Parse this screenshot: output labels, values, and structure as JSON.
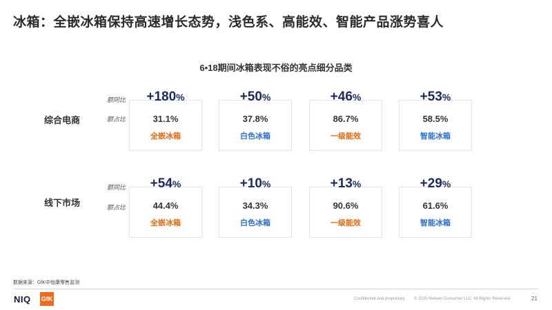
{
  "title": "冰箱：全嵌冰箱保持高速增长态势，浅色系、高能效、智能产品涨势喜人",
  "subtitle": "6•18期间冰箱表现不俗的亮点细分品类",
  "metric_labels": {
    "growth": "额同比",
    "share": "额占比"
  },
  "colors": {
    "orange": "#e86a10",
    "blue": "#2b6fd6",
    "navy": "#1b2a5e"
  },
  "rows": [
    {
      "label": "综合电商",
      "cells": [
        {
          "growth": "+180",
          "pct": "%",
          "share": "31.1%",
          "category": "全嵌冰箱",
          "color": "orange"
        },
        {
          "growth": "+50",
          "pct": "%",
          "share": "37.8%",
          "category": "白色冰箱",
          "color": "blue"
        },
        {
          "growth": "+46",
          "pct": "%",
          "share": "86.7%",
          "category": "一级能效",
          "color": "orange"
        },
        {
          "growth": "+53",
          "pct": "%",
          "share": "58.5%",
          "category": "智能冰箱",
          "color": "blue"
        }
      ]
    },
    {
      "label": "线下市场",
      "cells": [
        {
          "growth": "+54",
          "pct": "%",
          "share": "44.4%",
          "category": "全嵌冰箱",
          "color": "orange"
        },
        {
          "growth": "+10",
          "pct": "%",
          "share": "34.3%",
          "category": "白色冰箱",
          "color": "blue"
        },
        {
          "growth": "+13",
          "pct": "%",
          "share": "90.6%",
          "category": "一级能效",
          "color": "orange"
        },
        {
          "growth": "+29",
          "pct": "%",
          "share": "61.6%",
          "category": "智能冰箱",
          "color": "blue"
        }
      ]
    }
  ],
  "footer": {
    "source": "数据来源：GfK中怡康零售监测",
    "logo_niq": "NIQ",
    "logo_gfk": "GfK",
    "confidential": "Confidential and proprietary",
    "copyright": "© 2025 Nielsen Consumer LLC. All Rights Reserved.",
    "page": "21"
  }
}
